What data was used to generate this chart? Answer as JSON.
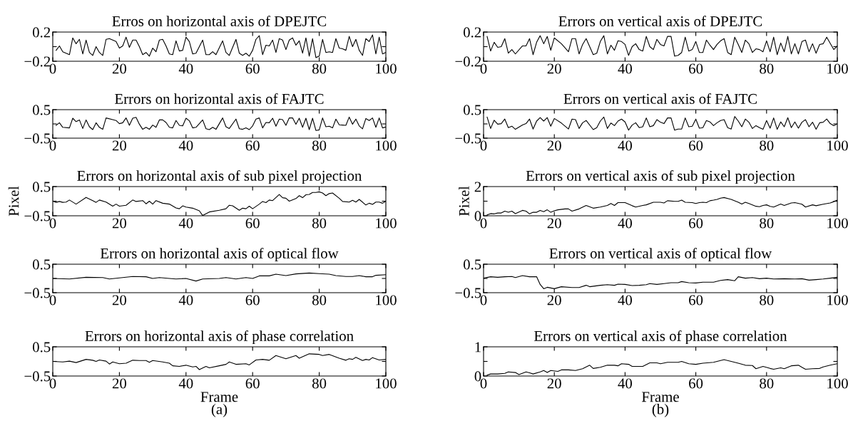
{
  "chart_data": [
    {
      "type": "line",
      "title": "Erros on horizontal axis of DPEJTC",
      "color": "#000000",
      "xlim": [
        0,
        100
      ],
      "xticks": [
        0,
        20,
        40,
        60,
        80,
        100
      ],
      "ylim": [
        -0.2,
        0.2
      ],
      "yticks": [
        {
          "value": -0.2,
          "label": "−0.2"
        },
        {
          "value": 0,
          "label": null
        },
        0.2
      ],
      "x": [
        1,
        2,
        3,
        5,
        6,
        7,
        8,
        9,
        10,
        11,
        12,
        13,
        14,
        15,
        16,
        17,
        18,
        19,
        20,
        21,
        22,
        23,
        24,
        25,
        26,
        27,
        28,
        29,
        30,
        31,
        32,
        33,
        34,
        35,
        36,
        37,
        38,
        39,
        40,
        41,
        42,
        43,
        45,
        46,
        47,
        48,
        49,
        51,
        52,
        53,
        55,
        56,
        57,
        58,
        59,
        60,
        61,
        62,
        63,
        64,
        65,
        66,
        67,
        68,
        69,
        70,
        71,
        72,
        73,
        74,
        75,
        76,
        77,
        78,
        79,
        80,
        81,
        82,
        83,
        84,
        85,
        86,
        87,
        88,
        89,
        90,
        91,
        92,
        93,
        94,
        95,
        96,
        97,
        98,
        99,
        100
      ],
      "values": [
        -0.05,
        0.01,
        -0.07,
        -0.11,
        0.12,
        0.04,
        0.1,
        -0.1,
        0.09,
        -0.08,
        -0.12,
        0,
        -0.08,
        -0.12,
        0.1,
        0.11,
        0.09,
        0.07,
        -0.02,
        0.01,
        0.13,
        -0.01,
        0.09,
        0.09,
        0,
        -0.11,
        -0.08,
        -0.13,
        -0.02,
        -0.07,
        0.09,
        0.1,
        0.01,
        -0.1,
        -0.11,
        0.08,
        -0.06,
        -0.05,
        0.13,
        0.07,
        -0.1,
        -0.09,
        0.09,
        -0.11,
        -0.11,
        -0.07,
        -0.11,
        0.08,
        -0.08,
        -0.12,
        0.1,
        -0.09,
        -0.12,
        -0.09,
        -0.13,
        -0.05,
        0.1,
        0.15,
        -0.11,
        0.02,
        0.01,
        0.09,
        -0.08,
        0.11,
        0.09,
        -0.04,
        0.09,
        0.12,
        0.02,
        0.08,
        -0.09,
        0.12,
        -0.13,
        0.11,
        -0.15,
        -0.13,
        0.1,
        -0.08,
        -0.07,
        -0.08,
        0.11,
        -0.02,
        -0.03,
        -0.05,
        0.14,
        0,
        0.1,
        -0.05,
        -0.12,
        0.11,
        0.07,
        0.16,
        -0.1,
        0.13,
        -0.1,
        -0.08
      ]
    },
    {
      "type": "line",
      "title": "Errors on horizontal axis of FAJTC",
      "color": "#000000",
      "xlim": [
        0,
        100
      ],
      "xticks": [
        0,
        20,
        40,
        60,
        80,
        100
      ],
      "ylim": [
        -0.5,
        0.5
      ],
      "yticks": [
        {
          "value": -0.5,
          "label": "−0.5"
        },
        {
          "value": 0,
          "label": null
        },
        0.5
      ],
      "x": [
        1,
        2,
        3,
        5,
        6,
        7,
        8,
        9,
        10,
        11,
        12,
        13,
        14,
        15,
        16,
        18,
        19,
        20,
        21,
        22,
        23,
        24,
        25,
        26,
        27,
        28,
        29,
        30,
        31,
        32,
        33,
        34,
        35,
        36,
        37,
        38,
        39,
        40,
        41,
        42,
        43,
        45,
        46,
        47,
        48,
        49,
        51,
        52,
        53,
        55,
        56,
        57,
        58,
        59,
        60,
        61,
        62,
        63,
        64,
        65,
        66,
        67,
        68,
        69,
        70,
        71,
        72,
        73,
        74,
        75,
        76,
        77,
        78,
        79,
        80,
        81,
        82,
        83,
        84,
        85,
        86,
        87,
        88,
        89,
        90,
        91,
        92,
        93,
        94,
        95,
        96,
        97,
        98,
        99,
        100
      ],
      "values": [
        -0.05,
        0.04,
        -0.12,
        -0.14,
        0.2,
        0.08,
        0.14,
        -0.16,
        0.14,
        -0.1,
        -0.2,
        0.04,
        -0.12,
        -0.19,
        0.21,
        0.15,
        0.12,
        0.01,
        0.04,
        0.21,
        -0.05,
        0.2,
        0.23,
        -0.01,
        -0.19,
        -0.12,
        -0.19,
        -0.04,
        -0.12,
        0.14,
        0.14,
        0.05,
        -0.12,
        -0.14,
        0.12,
        -0.05,
        -0.07,
        0.2,
        0.11,
        -0.14,
        -0.12,
        0.14,
        -0.17,
        -0.2,
        -0.12,
        -0.19,
        0.21,
        -0.1,
        -0.16,
        0.17,
        -0.17,
        -0.19,
        -0.14,
        -0.2,
        -0.07,
        0.17,
        0.21,
        -0.14,
        0.05,
        0.04,
        0.2,
        -0.08,
        0.17,
        0.15,
        -0.05,
        0.21,
        0.21,
        -0.01,
        0.2,
        -0.12,
        0.2,
        -0.2,
        0.2,
        -0.23,
        -0.21,
        0.21,
        -0.1,
        -0.08,
        -0.14,
        0.17,
        -0.03,
        -0.04,
        -0.05,
        0.24,
        -0.01,
        0.17,
        -0.07,
        -0.17,
        0.19,
        0.12,
        0.21,
        -0.12,
        0.21,
        -0.14,
        -0.11
      ]
    },
    {
      "type": "line",
      "title": "Errors on horizontal axis of sub pixel projection",
      "ylabel": "Pixel",
      "color": "#000000",
      "xlim": [
        0,
        100
      ],
      "xticks": [
        0,
        20,
        40,
        60,
        80,
        100
      ],
      "ylim": [
        -0.5,
        0.5
      ],
      "yticks": [
        {
          "value": -0.5,
          "label": "−0.5"
        },
        {
          "value": 0,
          "label": null
        },
        0.5
      ],
      "x": [
        0,
        1,
        2,
        3,
        4,
        5,
        7,
        10,
        12,
        13,
        14,
        16,
        18,
        19,
        20,
        22,
        24,
        25,
        27,
        28,
        29,
        30,
        31,
        33,
        35,
        37,
        38,
        39,
        40,
        42,
        44,
        45,
        47,
        50,
        52,
        53,
        54,
        56,
        57,
        58,
        59,
        60,
        62,
        63,
        64,
        65,
        66,
        68,
        69,
        70,
        71,
        73,
        74,
        75,
        76,
        77,
        78,
        79,
        80,
        81,
        82,
        83,
        84,
        86,
        87,
        89,
        90,
        91,
        92,
        94,
        95,
        96,
        97,
        98,
        99,
        100
      ],
      "values": [
        0,
        -0.04,
        -0.01,
        -0.04,
        -0.03,
        0.04,
        -0.1,
        0.13,
        0.02,
        -0.04,
        0.04,
        -0.03,
        -0.17,
        -0.1,
        -0.17,
        -0.14,
        0.04,
        -0.01,
        0.02,
        -0.09,
        0,
        -0.1,
        0.02,
        -0.07,
        -0.1,
        -0.23,
        -0.26,
        -0.16,
        -0.2,
        -0.24,
        -0.33,
        -0.49,
        -0.37,
        -0.31,
        -0.26,
        -0.14,
        -0.16,
        -0.31,
        -0.24,
        -0.26,
        -0.17,
        -0.26,
        -0.1,
        -0.01,
        -0.05,
        0.04,
        0.02,
        0.23,
        0.12,
        0.1,
        0,
        0.09,
        0.19,
        0.12,
        0.22,
        0.23,
        0.3,
        0.3,
        0.32,
        0.28,
        0.19,
        0.26,
        0.28,
        0.1,
        -0.01,
        -0.03,
        0.03,
        -0.03,
        0.06,
        -0.13,
        -0.07,
        -0.11,
        -0.03,
        -0.03,
        -0.07,
        0
      ]
    },
    {
      "type": "line",
      "title": "Errors on horizontal axis of optical flow",
      "color": "#000000",
      "xlim": [
        0,
        100
      ],
      "xticks": [
        0,
        20,
        40,
        60,
        80,
        100
      ],
      "ylim": [
        -0.5,
        0.5
      ],
      "yticks": [
        {
          "value": -0.5,
          "label": "−0.5"
        },
        {
          "value": 0,
          "label": null
        },
        0.5
      ],
      "x": [
        0,
        5,
        10,
        15,
        17,
        20,
        24,
        28,
        30,
        32,
        35,
        37,
        40,
        43,
        45,
        50,
        52,
        55,
        58,
        60,
        62,
        65,
        67,
        70,
        73,
        77,
        80,
        83,
        85,
        88,
        90,
        92,
        94,
        96,
        97,
        100
      ],
      "values": [
        0,
        -0.02,
        0.04,
        0.03,
        -0.02,
        0.02,
        0.07,
        0.06,
        0,
        0.03,
        0,
        -0.02,
        0,
        -0.09,
        -0.02,
        0,
        0.03,
        -0.02,
        0.03,
        0,
        0.09,
        0.09,
        0.15,
        0.1,
        0.16,
        0.19,
        0.17,
        0.15,
        0.1,
        0.07,
        0.07,
        0.1,
        0.06,
        0.06,
        0.11,
        0.13
      ]
    },
    {
      "type": "line",
      "title": "Errors on horizontal axis of phase correlation",
      "xlabel": "Frame",
      "annotations": [
        "(a)"
      ],
      "color": "#000000",
      "xlim": [
        0,
        100
      ],
      "xticks": [
        0,
        20,
        40,
        60,
        80,
        100
      ],
      "ylim": [
        -0.5,
        0.5
      ],
      "yticks": [
        {
          "value": -0.5,
          "label": "−0.5"
        },
        {
          "value": 0,
          "label": null
        },
        0.5
      ],
      "x": [
        0,
        3,
        5,
        7,
        10,
        12,
        13,
        14,
        16,
        17,
        18,
        20,
        22,
        24,
        26,
        28,
        29,
        30,
        33,
        35,
        36,
        38,
        40,
        42,
        43,
        44,
        46,
        47,
        50,
        52,
        53,
        55,
        58,
        59,
        61,
        63,
        65,
        67,
        70,
        73,
        74,
        77,
        80,
        81,
        83,
        86,
        88,
        89,
        90,
        91,
        93,
        94,
        95,
        96,
        98,
        100
      ],
      "values": [
        0,
        -0.02,
        0.01,
        -0.04,
        0.07,
        0.04,
        0,
        0.05,
        0.01,
        -0.09,
        -0.02,
        -0.08,
        -0.06,
        0.04,
        0.03,
        0.03,
        -0.03,
        0.03,
        -0.02,
        -0.06,
        -0.15,
        -0.17,
        -0.13,
        -0.19,
        -0.17,
        -0.28,
        -0.17,
        -0.22,
        -0.15,
        -0.1,
        -0.02,
        -0.1,
        -0.08,
        -0.12,
        0.05,
        0.07,
        0.04,
        0.2,
        0.09,
        0.2,
        0.11,
        0.26,
        0.24,
        0.2,
        0.24,
        0.11,
        0.04,
        0.09,
        0.07,
        0.14,
        0.03,
        0.07,
        0.05,
        0.13,
        0.05,
        0.07
      ]
    },
    {
      "type": "line",
      "title": "Errors on vertical axis of DPEJTC",
      "color": "#000000",
      "xlim": [
        0,
        100
      ],
      "xticks": [
        0,
        20,
        40,
        60,
        80,
        100
      ],
      "ylim": [
        -0.2,
        0.2
      ],
      "yticks": [
        {
          "value": -0.2,
          "label": "−0.2"
        },
        {
          "value": 0,
          "label": null
        },
        0.2
      ],
      "x": [
        1,
        2,
        3,
        4,
        5,
        6,
        7,
        8,
        9,
        11,
        12,
        13,
        14,
        15,
        16,
        17,
        18,
        19,
        20,
        22,
        24,
        25,
        26,
        27,
        28,
        29,
        31,
        32,
        33,
        34,
        35,
        36,
        37,
        38,
        39,
        40,
        41,
        42,
        43,
        44,
        45,
        46,
        47,
        48,
        49,
        50,
        51,
        52,
        53,
        54,
        55,
        56,
        57,
        58,
        59,
        60,
        61,
        62,
        63,
        64,
        65,
        66,
        67,
        68,
        69,
        70,
        71,
        72,
        73,
        74,
        75,
        76,
        77,
        78,
        79,
        80,
        81,
        82,
        83,
        84,
        85,
        86,
        87,
        88,
        89,
        90,
        91,
        92,
        93,
        94,
        95,
        96,
        97,
        99,
        100
      ],
      "values": [
        0.14,
        -0.06,
        0.06,
        -0.01,
        0,
        0.11,
        -0.09,
        -0.04,
        -0.1,
        0.01,
        0.01,
        0.11,
        -0.11,
        0.06,
        0.15,
        0.04,
        0.14,
        -0.05,
        0.12,
        0.04,
        -0.07,
        0.11,
        0.11,
        -0.1,
        0.03,
        0.11,
        -0.11,
        -0.09,
        0.07,
        0.15,
        -0.1,
        0.02,
        -0.05,
        0.08,
        0.07,
        0.03,
        -0.12,
        0,
        0.04,
        -0.04,
        -0.06,
        0.14,
        0,
        -0.04,
        0.1,
        0.03,
        0.01,
        0.14,
        0.14,
        -0.13,
        -0.12,
        -0.08,
        0.13,
        -0.06,
        -0.04,
        0.07,
        -0.08,
        -0.08,
        0.09,
        0.02,
        -0.04,
        0.03,
        0.08,
        0.11,
        -0.08,
        -0.11,
        0.13,
        0.03,
        -0.08,
        0.09,
        0.04,
        -0.08,
        -0.03,
        -0.04,
        -0.07,
        0.08,
        -0.07,
        0.13,
        -0.11,
        0.05,
        -0.07,
        0.14,
        -0.1,
        0.04,
        -0.1,
        0.07,
        0.09,
        -0.07,
        0.04,
        -0.09,
        0.03,
        0.04,
        0.13,
        -0.04,
        0.01
      ]
    },
    {
      "type": "line",
      "title": "Errors on vertical axis of FAJTC",
      "color": "#000000",
      "xlim": [
        0,
        100
      ],
      "xticks": [
        0,
        20,
        40,
        60,
        80,
        100
      ],
      "ylim": [
        -0.5,
        0.5
      ],
      "yticks": [
        {
          "value": -0.5,
          "label": "−0.5"
        },
        {
          "value": 0,
          "label": null
        },
        0.5
      ],
      "x": [
        1,
        2,
        3,
        4,
        5,
        6,
        7,
        8,
        9,
        11,
        12,
        13,
        14,
        15,
        16,
        17,
        18,
        19,
        20,
        22,
        24,
        25,
        26,
        27,
        28,
        29,
        31,
        32,
        33,
        34,
        35,
        36,
        37,
        38,
        39,
        40,
        41,
        42,
        43,
        44,
        45,
        46,
        47,
        48,
        49,
        50,
        51,
        52,
        53,
        54,
        55,
        56,
        57,
        58,
        59,
        60,
        61,
        62,
        63,
        64,
        65,
        66,
        67,
        68,
        69,
        70,
        71,
        72,
        73,
        74,
        75,
        76,
        77,
        78,
        79,
        80,
        81,
        82,
        83,
        84,
        85,
        86,
        87,
        88,
        89,
        90,
        91,
        92,
        93,
        94,
        95,
        96,
        97,
        98,
        99,
        100
      ],
      "values": [
        0.24,
        -0.16,
        0.13,
        -0.01,
        0.01,
        0.17,
        -0.13,
        -0.08,
        -0.19,
        -0.04,
        0.01,
        0.17,
        -0.18,
        0.1,
        0.22,
        0.1,
        0.22,
        -0.08,
        0.19,
        0.03,
        -0.18,
        0.17,
        0.15,
        -0.16,
        0.04,
        0.12,
        -0.2,
        -0.13,
        0.1,
        0.24,
        -0.16,
        0.03,
        -0.06,
        0.1,
        0.17,
        0.07,
        -0.22,
        -0.04,
        0.04,
        -0.13,
        -0.1,
        0.21,
        -0.1,
        -0.06,
        0.15,
        0.06,
        0.01,
        0.21,
        0.21,
        -0.22,
        -0.18,
        -0.18,
        0.21,
        -0.1,
        -0.08,
        0.17,
        -0.15,
        -0.13,
        0.12,
        0.07,
        -0.06,
        0.04,
        0.12,
        0.15,
        -0.13,
        -0.18,
        0.26,
        0.1,
        -0.1,
        0.17,
        0.06,
        -0.16,
        -0.06,
        -0.13,
        -0.19,
        0.12,
        -0.15,
        0.21,
        -0.19,
        0.07,
        -0.1,
        0.22,
        -0.13,
        0.07,
        -0.15,
        0.06,
        0.15,
        -0.1,
        0.06,
        -0.19,
        0.04,
        0.06,
        0.17,
        0.01,
        -0.06,
        0
      ]
    },
    {
      "type": "line",
      "title": "Errors on vertical axis of sub pixel projection",
      "ylabel": "Pixel",
      "color": "#000000",
      "xlim": [
        0,
        100
      ],
      "xticks": [
        0,
        20,
        40,
        60,
        80,
        100
      ],
      "ylim": [
        0,
        2
      ],
      "yticks": [
        0,
        {
          "value": 1,
          "label": null
        },
        2
      ],
      "x": [
        1,
        2,
        3,
        4,
        5,
        6,
        7,
        8,
        9,
        11,
        12,
        13,
        14,
        15,
        16,
        17,
        18,
        19,
        20,
        21,
        23,
        24,
        25,
        27,
        29,
        31,
        33,
        35,
        36,
        37,
        38,
        40,
        42,
        43,
        45,
        46,
        48,
        50,
        51,
        52,
        54,
        55,
        56,
        57,
        59,
        60,
        61,
        62,
        63,
        64,
        65,
        66,
        67,
        68,
        70,
        72,
        73,
        74,
        75,
        77,
        78,
        79,
        80,
        81,
        82,
        84,
        85,
        87,
        88,
        90,
        91,
        93,
        94,
        96,
        98,
        99,
        100
      ],
      "values": [
        0.06,
        0.15,
        0.13,
        0.19,
        0.19,
        0.32,
        0.24,
        0.32,
        0.15,
        0.37,
        0.32,
        0.13,
        0.24,
        0.24,
        0.37,
        0.28,
        0.41,
        0.24,
        0.34,
        0.41,
        0.47,
        0.47,
        0.32,
        0.47,
        0.71,
        0.52,
        0.6,
        0.71,
        0.84,
        0.71,
        0.9,
        0.9,
        0.69,
        0.6,
        0.71,
        0.75,
        0.93,
        0.93,
        0.88,
        1.03,
        0.99,
        0.99,
        1.07,
        0.93,
        0.9,
        0.84,
        0.9,
        0.93,
        0.9,
        1.03,
        1.07,
        1.12,
        1.21,
        1.25,
        1.12,
        0.93,
        0.8,
        0.93,
        0.84,
        0.65,
        0.62,
        0.71,
        0.75,
        0.65,
        0.6,
        0.8,
        0.71,
        0.88,
        0.9,
        0.79,
        0.6,
        0.75,
        0.69,
        0.79,
        0.88,
        0.97,
        1.07
      ]
    },
    {
      "type": "line",
      "title": "Errors on vertical axis of optical flow",
      "color": "#000000",
      "xlim": [
        0,
        100
      ],
      "xticks": [
        0,
        20,
        40,
        60,
        80,
        100
      ],
      "ylim": [
        -0.5,
        0.5
      ],
      "yticks": [
        {
          "value": -0.5,
          "label": "−0.5"
        },
        {
          "value": 0,
          "label": null
        },
        0.5
      ],
      "x": [
        0,
        2,
        4,
        6,
        8,
        9,
        11,
        13,
        15,
        16,
        17,
        18,
        20,
        22,
        25,
        27,
        29,
        30,
        33,
        35,
        37,
        38,
        40,
        42,
        44,
        46,
        47,
        49,
        51,
        53,
        55,
        56,
        58,
        60,
        62,
        65,
        67,
        69,
        71,
        72,
        74,
        76,
        78,
        80,
        82,
        85,
        88,
        90,
        92,
        94,
        96,
        98,
        100
      ],
      "values": [
        0.01,
        0.06,
        0.04,
        0.06,
        0.07,
        0.03,
        0.1,
        0.06,
        0.06,
        -0.21,
        -0.36,
        -0.31,
        -0.36,
        -0.29,
        -0.32,
        -0.32,
        -0.24,
        -0.29,
        -0.24,
        -0.22,
        -0.24,
        -0.2,
        -0.21,
        -0.25,
        -0.24,
        -0.22,
        -0.18,
        -0.21,
        -0.18,
        -0.15,
        -0.15,
        -0.11,
        -0.15,
        -0.16,
        -0.13,
        -0.13,
        -0.07,
        -0.04,
        -0.08,
        0.06,
        0.01,
        0.03,
        -0.01,
        0.01,
        -0.02,
        -0.01,
        -0.02,
        -0.01,
        -0.06,
        -0.04,
        -0.02,
        0.01,
        0.04
      ]
    },
    {
      "type": "line",
      "title": "Errors on vertical axis of phase correlation",
      "xlabel": "Frame",
      "annotations": [
        "(b)"
      ],
      "color": "#000000",
      "xlim": [
        0,
        100
      ],
      "xticks": [
        0,
        20,
        40,
        60,
        80,
        100
      ],
      "ylim": [
        0,
        1
      ],
      "yticks": [
        0,
        {
          "value": 0.5,
          "label": null
        },
        1
      ],
      "x": [
        1,
        2,
        4,
        6,
        7,
        9,
        10,
        12,
        13,
        14,
        16,
        17,
        18,
        19,
        21,
        22,
        24,
        26,
        28,
        30,
        31,
        33,
        35,
        37,
        38,
        39,
        41,
        42,
        45,
        47,
        49,
        50,
        52,
        55,
        56,
        58,
        60,
        62,
        65,
        68,
        70,
        72,
        74,
        76,
        77,
        79,
        81,
        82,
        84,
        85,
        87,
        89,
        90,
        91,
        93,
        95,
        96,
        98,
        100
      ],
      "values": [
        0.03,
        0.07,
        0.07,
        0.09,
        0.14,
        0.12,
        0.05,
        0.14,
        0.11,
        0.07,
        0.14,
        0.19,
        0.12,
        0.19,
        0.16,
        0.21,
        0.21,
        0.19,
        0.25,
        0.37,
        0.26,
        0.3,
        0.37,
        0.37,
        0.35,
        0.42,
        0.4,
        0.33,
        0.33,
        0.45,
        0.45,
        0.42,
        0.47,
        0.47,
        0.5,
        0.42,
        0.4,
        0.44,
        0.47,
        0.56,
        0.5,
        0.44,
        0.37,
        0.36,
        0.25,
        0.33,
        0.26,
        0.23,
        0.28,
        0.25,
        0.35,
        0.37,
        0.3,
        0.23,
        0.25,
        0.26,
        0.31,
        0.37,
        0.42
      ]
    }
  ]
}
